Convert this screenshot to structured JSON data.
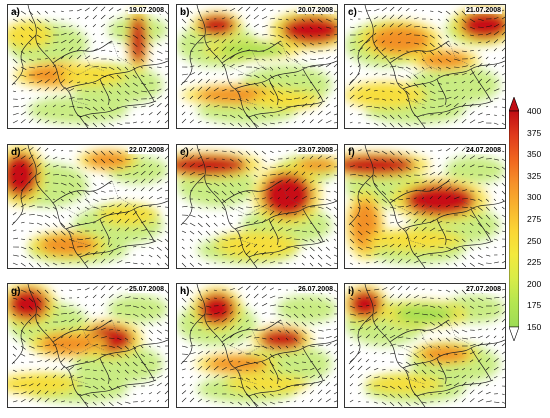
{
  "panels": [
    {
      "id": "a",
      "label": "a)",
      "date": "19.07.2008"
    },
    {
      "id": "b",
      "label": "b)",
      "date": "20.07.2008"
    },
    {
      "id": "c",
      "label": "c)",
      "date": "21.07.2008"
    },
    {
      "id": "d",
      "label": "d)",
      "date": "22.07.2008"
    },
    {
      "id": "e",
      "label": "e)",
      "date": "23.07.2008"
    },
    {
      "id": "f",
      "label": "f)",
      "date": "24.07.2008"
    },
    {
      "id": "g",
      "label": "g)",
      "date": "25.07.2008"
    },
    {
      "id": "h",
      "label": "h)",
      "date": "26.07.2008"
    },
    {
      "id": "i",
      "label": "i)",
      "date": "27.07.2008"
    }
  ],
  "colorbar": {
    "ticks": [
      "400",
      "375",
      "350",
      "325",
      "300",
      "275",
      "250",
      "225",
      "200",
      "175",
      "150"
    ],
    "colors": [
      "#c00d14",
      "#e03a1c",
      "#f0641e",
      "#f6912a",
      "#f8b42f",
      "#fbd635",
      "#f3ea3d",
      "#d8ec48",
      "#b4e650",
      "#9ddc56",
      "#ffffff"
    ]
  }
}
